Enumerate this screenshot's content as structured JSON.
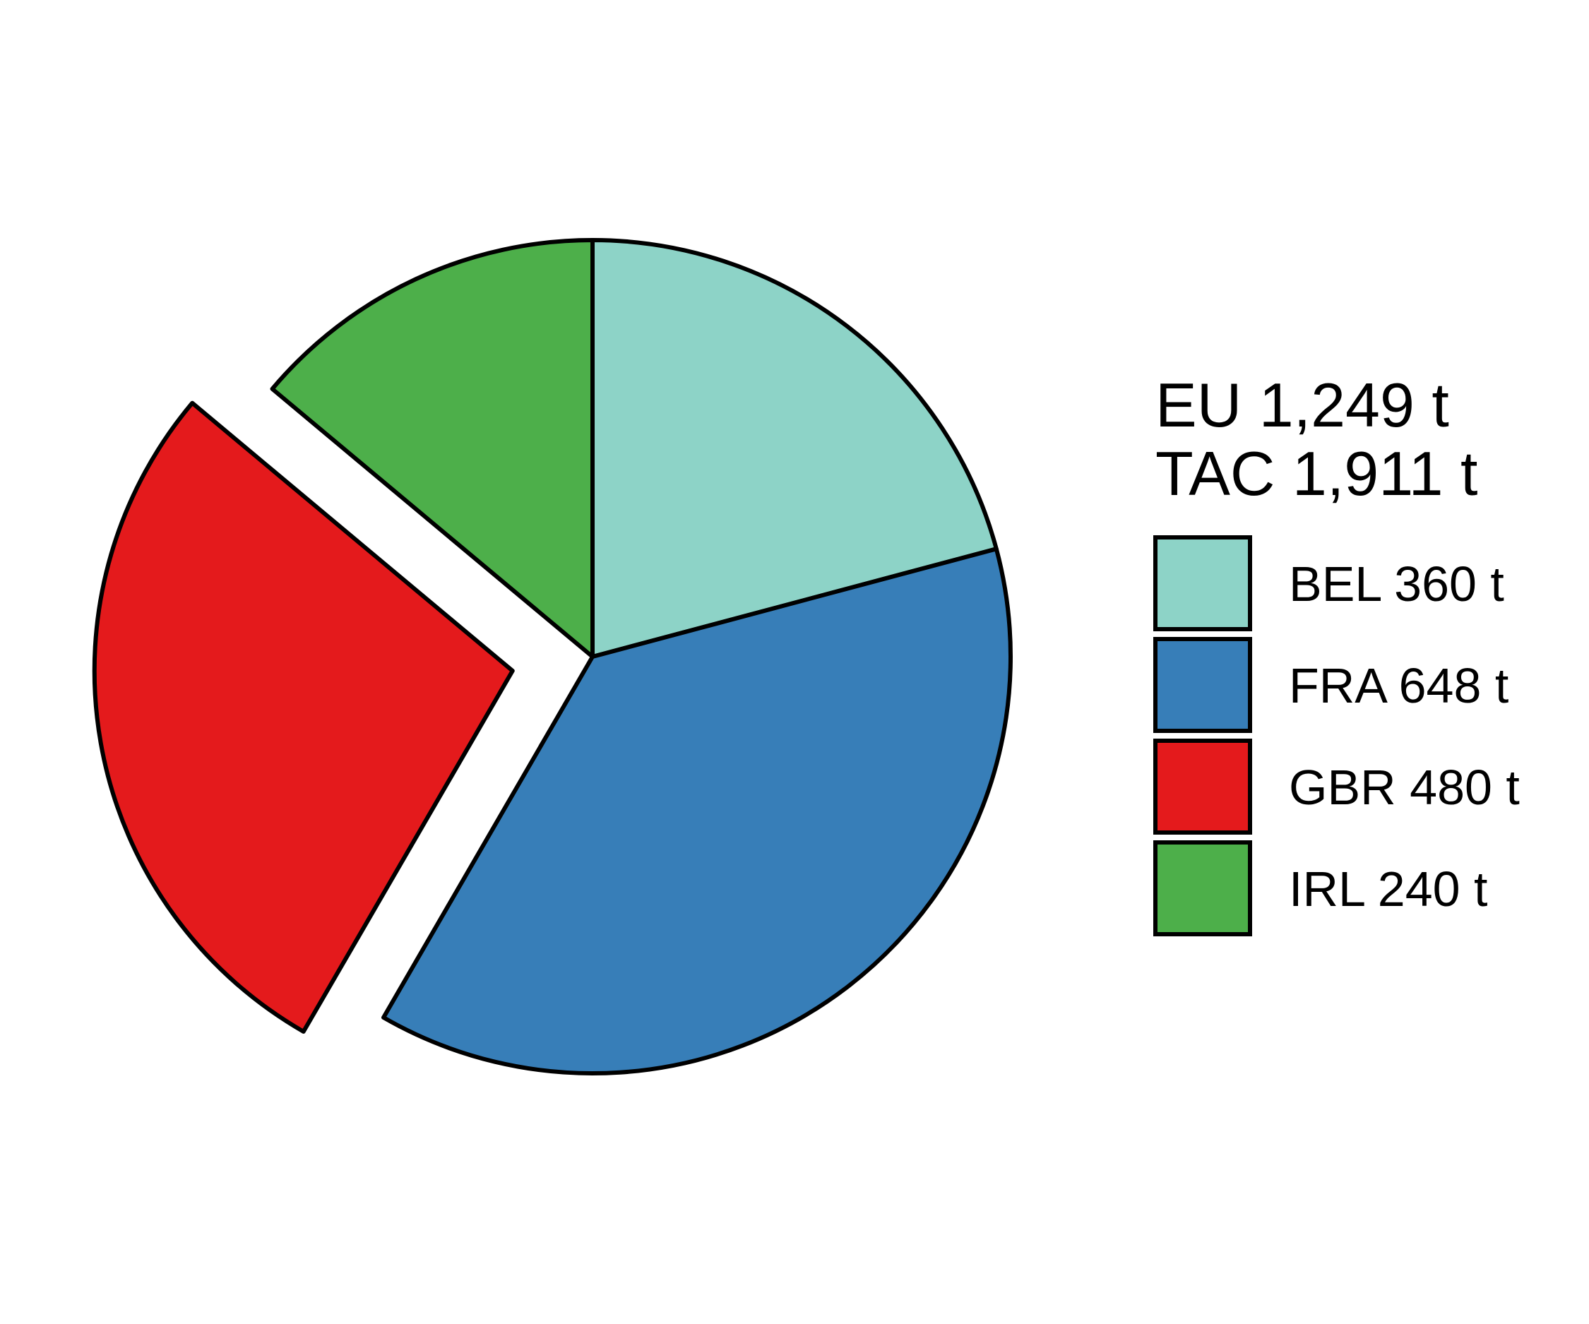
{
  "chart_data": {
    "type": "pie",
    "title": "",
    "legend_heading": [
      "EU 1,249 t",
      "TAC 1,911 t"
    ],
    "legend_position": "right",
    "start_angle": "12 o'clock",
    "direction": "clockwise",
    "exploded": [
      "GBR"
    ],
    "slices": [
      {
        "name": "BEL",
        "value": 360,
        "label": "BEL 360 t",
        "color": "#8DD3C7"
      },
      {
        "name": "FRA",
        "value": 648,
        "label": "FRA 648 t",
        "color": "#377EB8"
      },
      {
        "name": "GBR",
        "value": 480,
        "label": "GBR 480 t",
        "color": "#E41A1C"
      },
      {
        "name": "IRL",
        "value": 240,
        "label": "IRL 240 t",
        "color": "#4DAF4A"
      }
    ]
  }
}
